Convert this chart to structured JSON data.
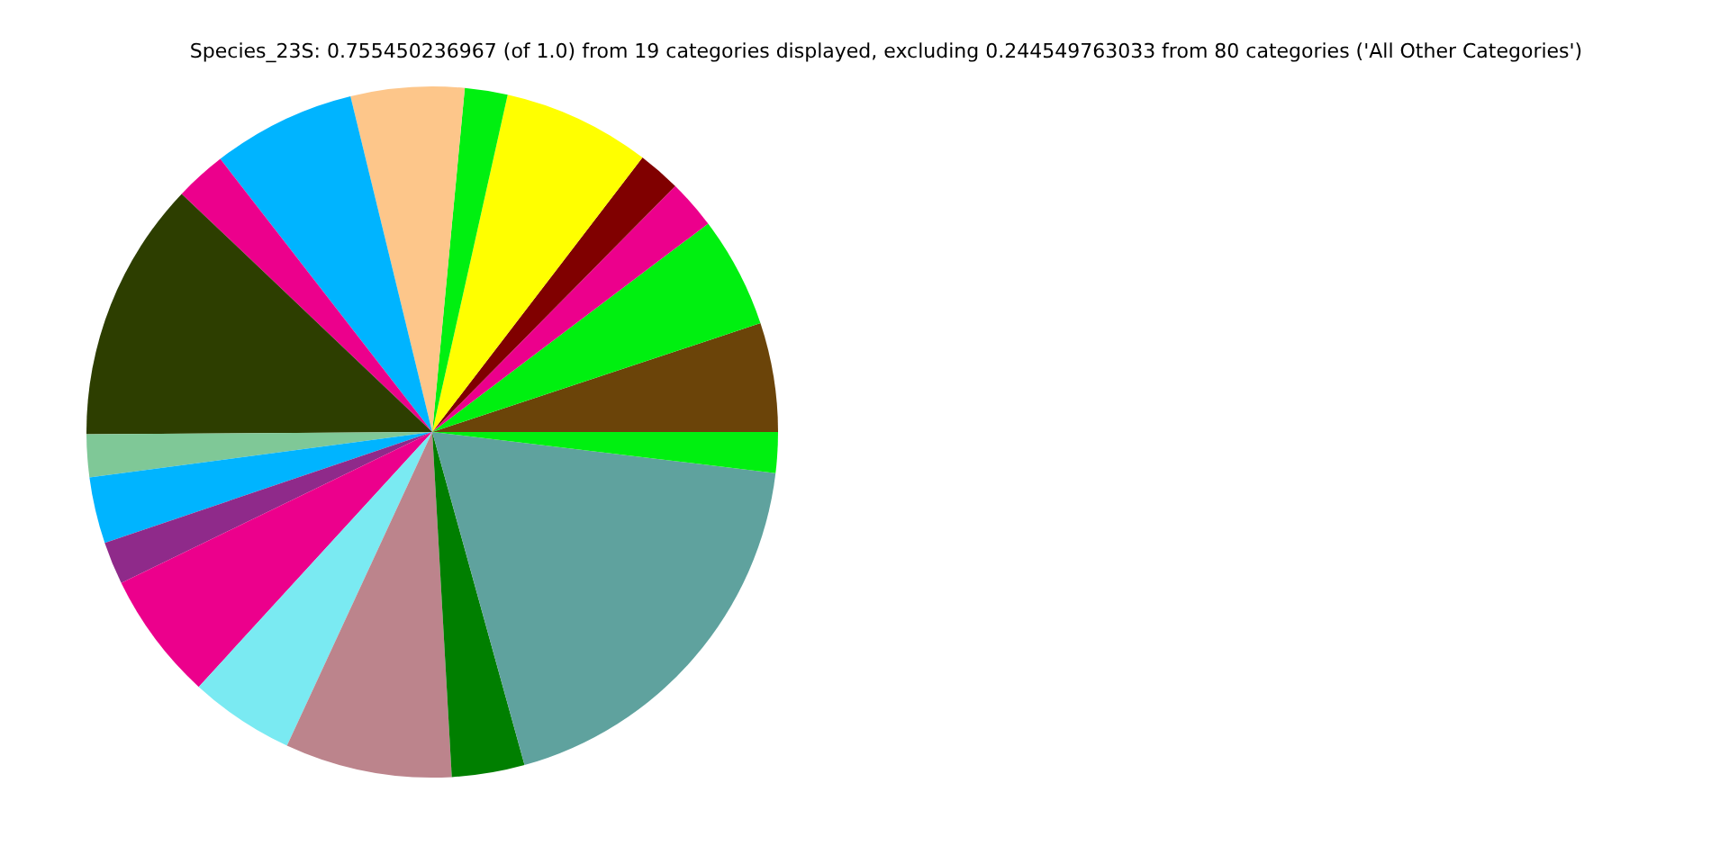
{
  "chart_data": {
    "type": "pie",
    "title": "Species_23S: 0.755450236967 (of 1.0) from 19 categories displayed, excluding 0.244549763033 from 80 categories ('All Other Categories')",
    "categories": [
      null,
      null,
      null,
      null,
      null,
      null,
      null,
      null,
      null,
      null,
      null,
      null,
      null,
      null,
      null,
      null,
      null,
      null,
      null
    ],
    "values": [
      5.1,
      5.2,
      2.3,
      2.0,
      6.9,
      2.0,
      5.3,
      6.7,
      2.4,
      12.2,
      2.0,
      3.1,
      2.0,
      6.0,
      4.9,
      7.8,
      3.4,
      18.8,
      1.9
    ],
    "colors": [
      "#6b4409",
      "#00f010",
      "#ec008c",
      "#800000",
      "#ffff00",
      "#00f010",
      "#fdc68a",
      "#00b4ff",
      "#ec008c",
      "#2d3e00",
      "#7fc897",
      "#00b4ff",
      "#8f2a8a",
      "#ec008c",
      "#7aeaf2",
      "#bc848c",
      "#007f00",
      "#5fa29e",
      "#00f010"
    ],
    "legend": false
  }
}
